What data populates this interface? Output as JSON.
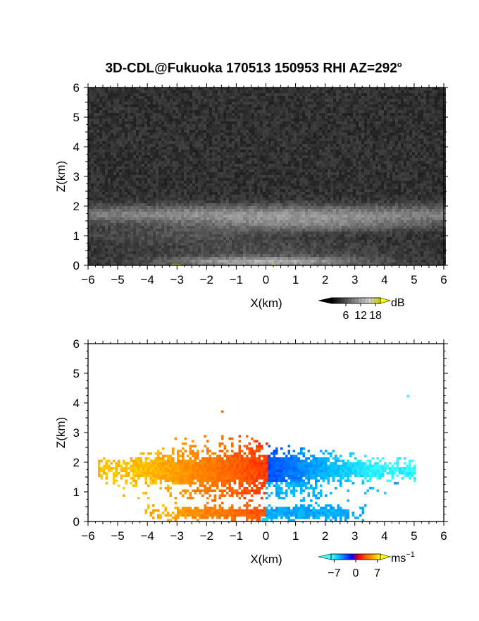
{
  "figure": {
    "title_main": "3D-CDL@Fukuoka 170513 150953 RHI AZ=292",
    "title_sup": "o"
  },
  "chart_data": [
    {
      "type": "heatmap",
      "panel": "backscatter",
      "xlabel": "X(km)",
      "ylabel": "Z(km)",
      "xlim": [
        -6,
        6
      ],
      "ylim": [
        0,
        6
      ],
      "xticks": [
        -6,
        -5,
        -4,
        -3,
        -2,
        -1,
        0,
        1,
        2,
        3,
        4,
        5,
        6
      ],
      "yticks": [
        0,
        1,
        2,
        3,
        4,
        5,
        6
      ],
      "colorbar": {
        "unit": "dB",
        "ticks": [
          6,
          12,
          18
        ],
        "colors": [
          "#000000",
          "#444444",
          "#888888",
          "#cccccc",
          "#ffffff",
          "#ffff00"
        ]
      },
      "features": [
        {
          "z_km": 1.65,
          "x_range_km": [
            -6,
            6
          ],
          "note": "bright layer"
        },
        {
          "z_km": 0.1,
          "x_range_km": [
            -3,
            3
          ],
          "note": "bright near-surface layer"
        }
      ]
    },
    {
      "type": "heatmap",
      "panel": "radial-velocity",
      "xlabel": "X(km)",
      "ylabel": "Z(km)",
      "xlim": [
        -6,
        6
      ],
      "ylim": [
        0,
        6
      ],
      "xticks": [
        -6,
        -5,
        -4,
        -3,
        -2,
        -1,
        0,
        1,
        2,
        3,
        4,
        5,
        6
      ],
      "yticks": [
        0,
        1,
        2,
        3,
        4,
        5,
        6
      ],
      "colorbar": {
        "unit": "ms",
        "unit_sup": "−1",
        "ticks": [
          -7,
          0,
          7
        ],
        "colors": [
          "#40ffff",
          "#00c0ff",
          "#0060ff",
          "#0000ff",
          "#ff0000",
          "#ff6000",
          "#ffa000",
          "#ffff00"
        ]
      },
      "features": [
        {
          "z_km": 1.7,
          "x_range_km": [
            -5.5,
            0.1
          ],
          "velocity_ms": 6,
          "note": "positive velocity layer"
        },
        {
          "z_km": 1.7,
          "x_range_km": [
            0.1,
            5.0
          ],
          "velocity_ms": -6,
          "note": "negative velocity layer"
        },
        {
          "z_km": 0.3,
          "x_range_km": [
            -4.0,
            0.0
          ],
          "velocity_ms": 5,
          "note": "positive near-surface layer"
        },
        {
          "z_km": 0.3,
          "x_range_km": [
            0.0,
            3.2
          ],
          "velocity_ms": -5,
          "note": "negative near-surface layer"
        }
      ]
    }
  ]
}
